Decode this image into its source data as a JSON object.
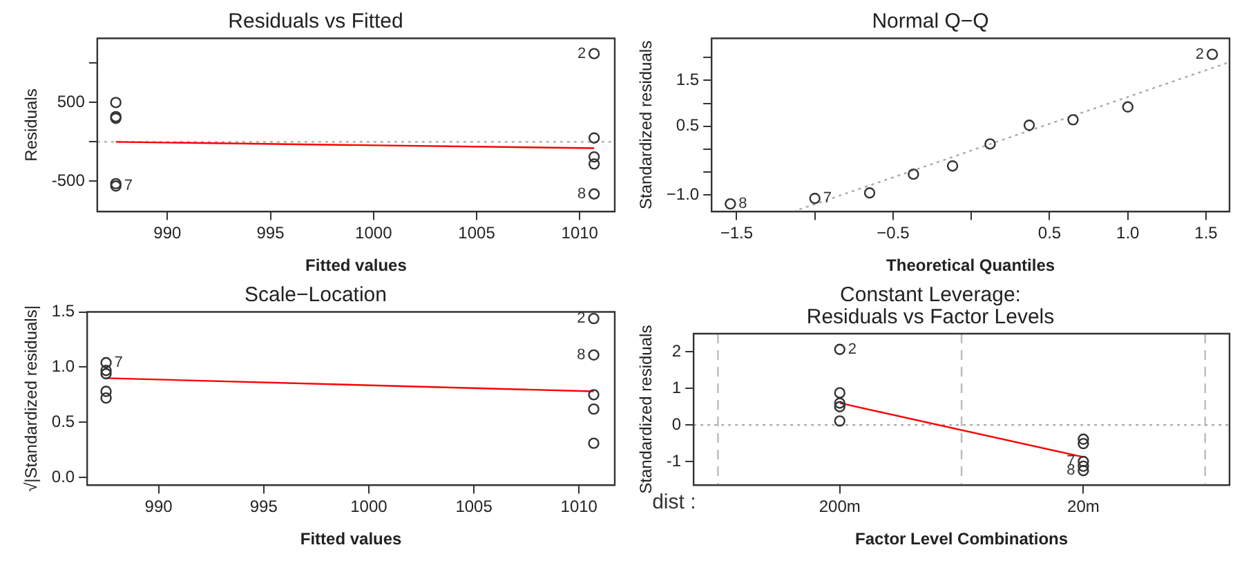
{
  "chart_data": [
    {
      "type": "scatter",
      "title": "Residuals vs Fitted",
      "xlabel": "Fitted values",
      "ylabel": "Residuals",
      "marker": "circle",
      "grid": false,
      "xlim": [
        986.6,
        1011.7
      ],
      "xticks": [
        990,
        995,
        1000,
        1005,
        1010
      ],
      "ylim": [
        -885,
        1314
      ],
      "yticks": [
        -500,
        {
          "value": 0,
          "label": null
        },
        500,
        {
          "value": 1000,
          "label": null
        }
      ],
      "series": [
        {
          "color": "#333333",
          "x": [
            987.5,
            987.5,
            987.5,
            987.5,
            987.5,
            1010.7,
            1010.7,
            1010.7,
            1010.7,
            1010.7
          ],
          "values": [
            500,
            320,
            300,
            -530,
            -560,
            1120,
            50,
            -190,
            -280,
            -660
          ]
        },
        {
          "type": "line",
          "color": "#ff0000",
          "marker": "none",
          "x": [
            987.5,
            1010.7
          ],
          "values": [
            0,
            -80
          ]
        }
      ],
      "ref_lines": [
        {
          "axis": "y",
          "value": 0,
          "color": "#aaaaaa",
          "line_style": "dotted"
        }
      ],
      "annotations": [
        {
          "text": "2",
          "x": 1010.7,
          "y": 1120
        },
        {
          "text": "7",
          "x": 987.5,
          "y": -560
        },
        {
          "text": "8",
          "x": 1010.7,
          "y": -660
        }
      ]
    },
    {
      "type": "scatter",
      "title": "Normal Q−Q",
      "xlabel": "Theoretical Quantiles",
      "ylabel": "Standardized residuals",
      "marker": "circle",
      "grid": false,
      "xlim": [
        -1.66,
        1.65
      ],
      "xticks": [
        {
          "value": -1.5,
          "label": "−1.5"
        },
        {
          "value": -1,
          "label": null
        },
        {
          "value": -0.5,
          "label": "−0.5"
        },
        {
          "value": 0,
          "label": null
        },
        {
          "value": 0.5,
          "label": "0.5"
        },
        {
          "value": 1,
          "label": "1.0"
        },
        {
          "value": 1.5,
          "label": "1.5"
        }
      ],
      "ylim": [
        -1.37,
        2.42
      ],
      "yticks": [
        {
          "value": -1,
          "label": "−1.0"
        },
        {
          "value": -0.5,
          "label": null
        },
        {
          "value": 0,
          "label": null
        },
        {
          "value": 0.5,
          "label": "0.5"
        },
        {
          "value": 1,
          "label": null
        },
        {
          "value": 1.5,
          "label": "1.5"
        },
        {
          "value": 2,
          "label": null
        }
      ],
      "series": [
        {
          "color": "#333333",
          "x": [
            -1.54,
            -1.0,
            -0.65,
            -0.37,
            -0.12,
            0.12,
            0.37,
            0.65,
            1.0,
            1.54
          ],
          "values": [
            -1.2,
            -1.08,
            -0.96,
            -0.55,
            -0.37,
            0.11,
            0.52,
            0.64,
            0.92,
            2.07
          ]
        },
        {
          "type": "line",
          "color": "#aaaaaa",
          "marker": "none",
          "line_style": "dotted",
          "x": [
            -1.14,
            1.65
          ],
          "values": [
            -1.37,
            1.9
          ]
        }
      ],
      "annotations": [
        {
          "text": "2",
          "x": 1.54,
          "y": 2.07
        },
        {
          "text": "7",
          "x": -1.0,
          "y": -1.08
        },
        {
          "text": "8",
          "x": -1.54,
          "y": -1.2
        }
      ]
    },
    {
      "type": "scatter",
      "title": "Scale−Location",
      "xlabel": "Fitted values",
      "ylabel": "√|Standardized residuals|",
      "marker": "circle",
      "grid": false,
      "xlim": [
        986.6,
        1011.7
      ],
      "xticks": [
        990,
        995,
        1000,
        1005,
        1010
      ],
      "ylim": [
        -0.07,
        1.5
      ],
      "yticks": [
        {
          "value": 0,
          "label": "0.0"
        },
        0.5,
        {
          "value": 1,
          "label": "1.0"
        },
        1.5
      ],
      "series": [
        {
          "color": "#333333",
          "x": [
            987.5,
            987.5,
            987.5,
            987.5,
            987.5,
            1010.7,
            1010.7,
            1010.7,
            1010.7,
            1010.7
          ],
          "values": [
            1.04,
            0.97,
            0.94,
            0.78,
            0.72,
            1.44,
            1.11,
            0.75,
            0.62,
            0.31
          ]
        },
        {
          "type": "line",
          "color": "#ff0000",
          "marker": "none",
          "x": [
            987.5,
            1010.7
          ],
          "values": [
            0.9,
            0.78
          ]
        }
      ],
      "annotations": [
        {
          "text": "7",
          "x": 987.5,
          "y": 1.04
        },
        {
          "text": "2",
          "x": 1010.7,
          "y": 1.44
        },
        {
          "text": "8",
          "x": 1010.7,
          "y": 1.11
        }
      ]
    },
    {
      "type": "scatter",
      "title": "Constant Leverage:\nResiduals vs Factor Levels",
      "xlabel": "Factor Level Combinations",
      "ylabel": "Standardized residuals",
      "marker": "circle",
      "grid": "x",
      "categories": [
        "200m",
        "20m"
      ],
      "ylim": [
        -1.65,
        2.5
      ],
      "yticks": [
        -1,
        0,
        1,
        2
      ],
      "series": [
        {
          "color": "#333333",
          "x": [
            "200m",
            "200m",
            "200m",
            "200m",
            "200m",
            "20m",
            "20m",
            "20m",
            "20m",
            "20m"
          ],
          "values": [
            2.07,
            0.88,
            0.6,
            0.5,
            0.11,
            -0.39,
            -0.51,
            -1.0,
            -1.13,
            -1.25
          ]
        },
        {
          "type": "line",
          "color": "#ff0000",
          "marker": "none",
          "x": [
            "200m",
            "20m"
          ],
          "values": [
            0.6,
            -0.88
          ]
        }
      ],
      "ref_lines": [
        {
          "axis": "y",
          "value": 0,
          "color": "#aaaaaa",
          "line_style": "dotted"
        }
      ],
      "annotations": [
        "dist :",
        {
          "text": "2",
          "x": "200m",
          "y": 2.07
        },
        {
          "text": "7",
          "x": "20m",
          "y": -1.0
        },
        {
          "text": "8",
          "x": "20m",
          "y": -1.25
        }
      ]
    }
  ]
}
